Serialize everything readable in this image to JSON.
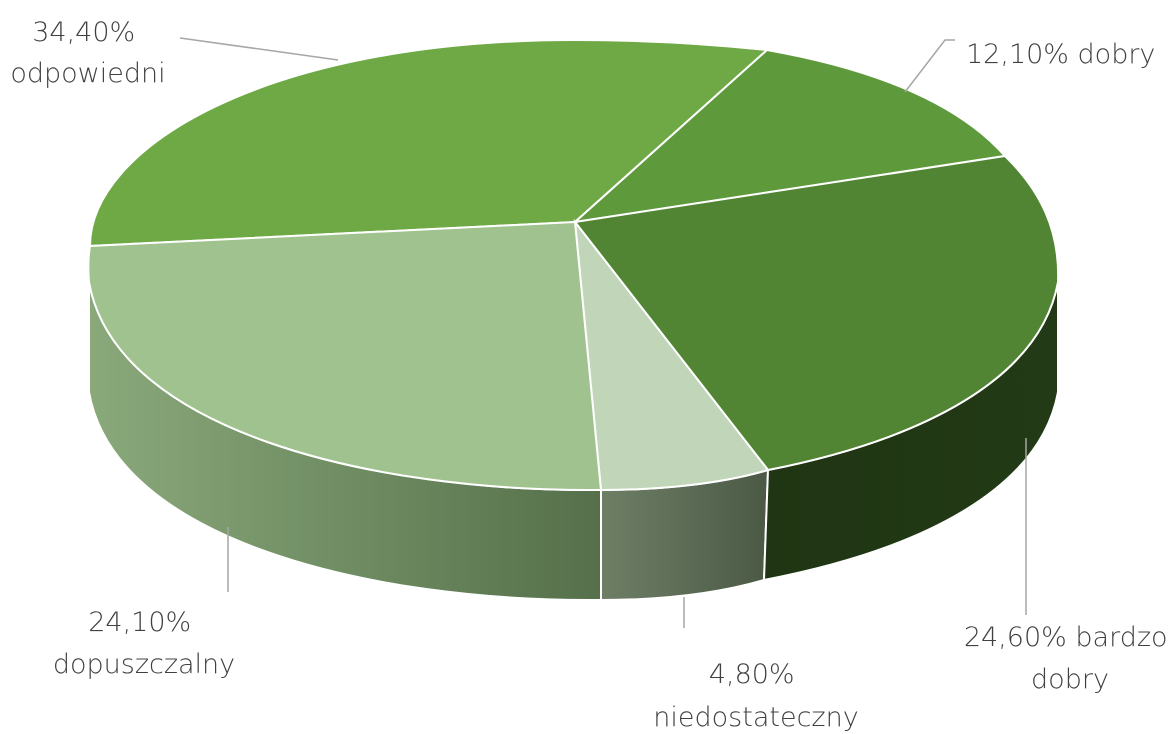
{
  "chart_data": {
    "type": "pie",
    "style": "3d",
    "title": "",
    "slices": [
      {
        "label": "dobry",
        "value": 12.1,
        "label_text": "12,10% dobry",
        "color": "#5e9a3c"
      },
      {
        "label": "bardzo dobry",
        "value": 24.6,
        "label_text": "24,60% bardzo dobry",
        "label_lines": [
          "24,60% bardzo",
          "dobry"
        ],
        "color": "#518433"
      },
      {
        "label": "niedostateczny",
        "value": 4.8,
        "label_text": "4,80% niedostateczny",
        "label_lines": [
          "4,80%",
          "niedostateczny"
        ],
        "color": "#c1d6b9"
      },
      {
        "label": "dopuszczalny",
        "value": 24.1,
        "label_text": "24,10% dopuszczalny",
        "label_lines": [
          "24,10%",
          "dopuszczalny"
        ],
        "color": "#a0c28f"
      },
      {
        "label": "odpowiedni",
        "value": 34.4,
        "label_text": "34,40% odpowiedni",
        "label_lines": [
          "34,40%",
          "odpowiedni"
        ],
        "color": "#6ea945"
      }
    ],
    "legend": "none",
    "data_labels": "outside-with-leader-lines"
  }
}
